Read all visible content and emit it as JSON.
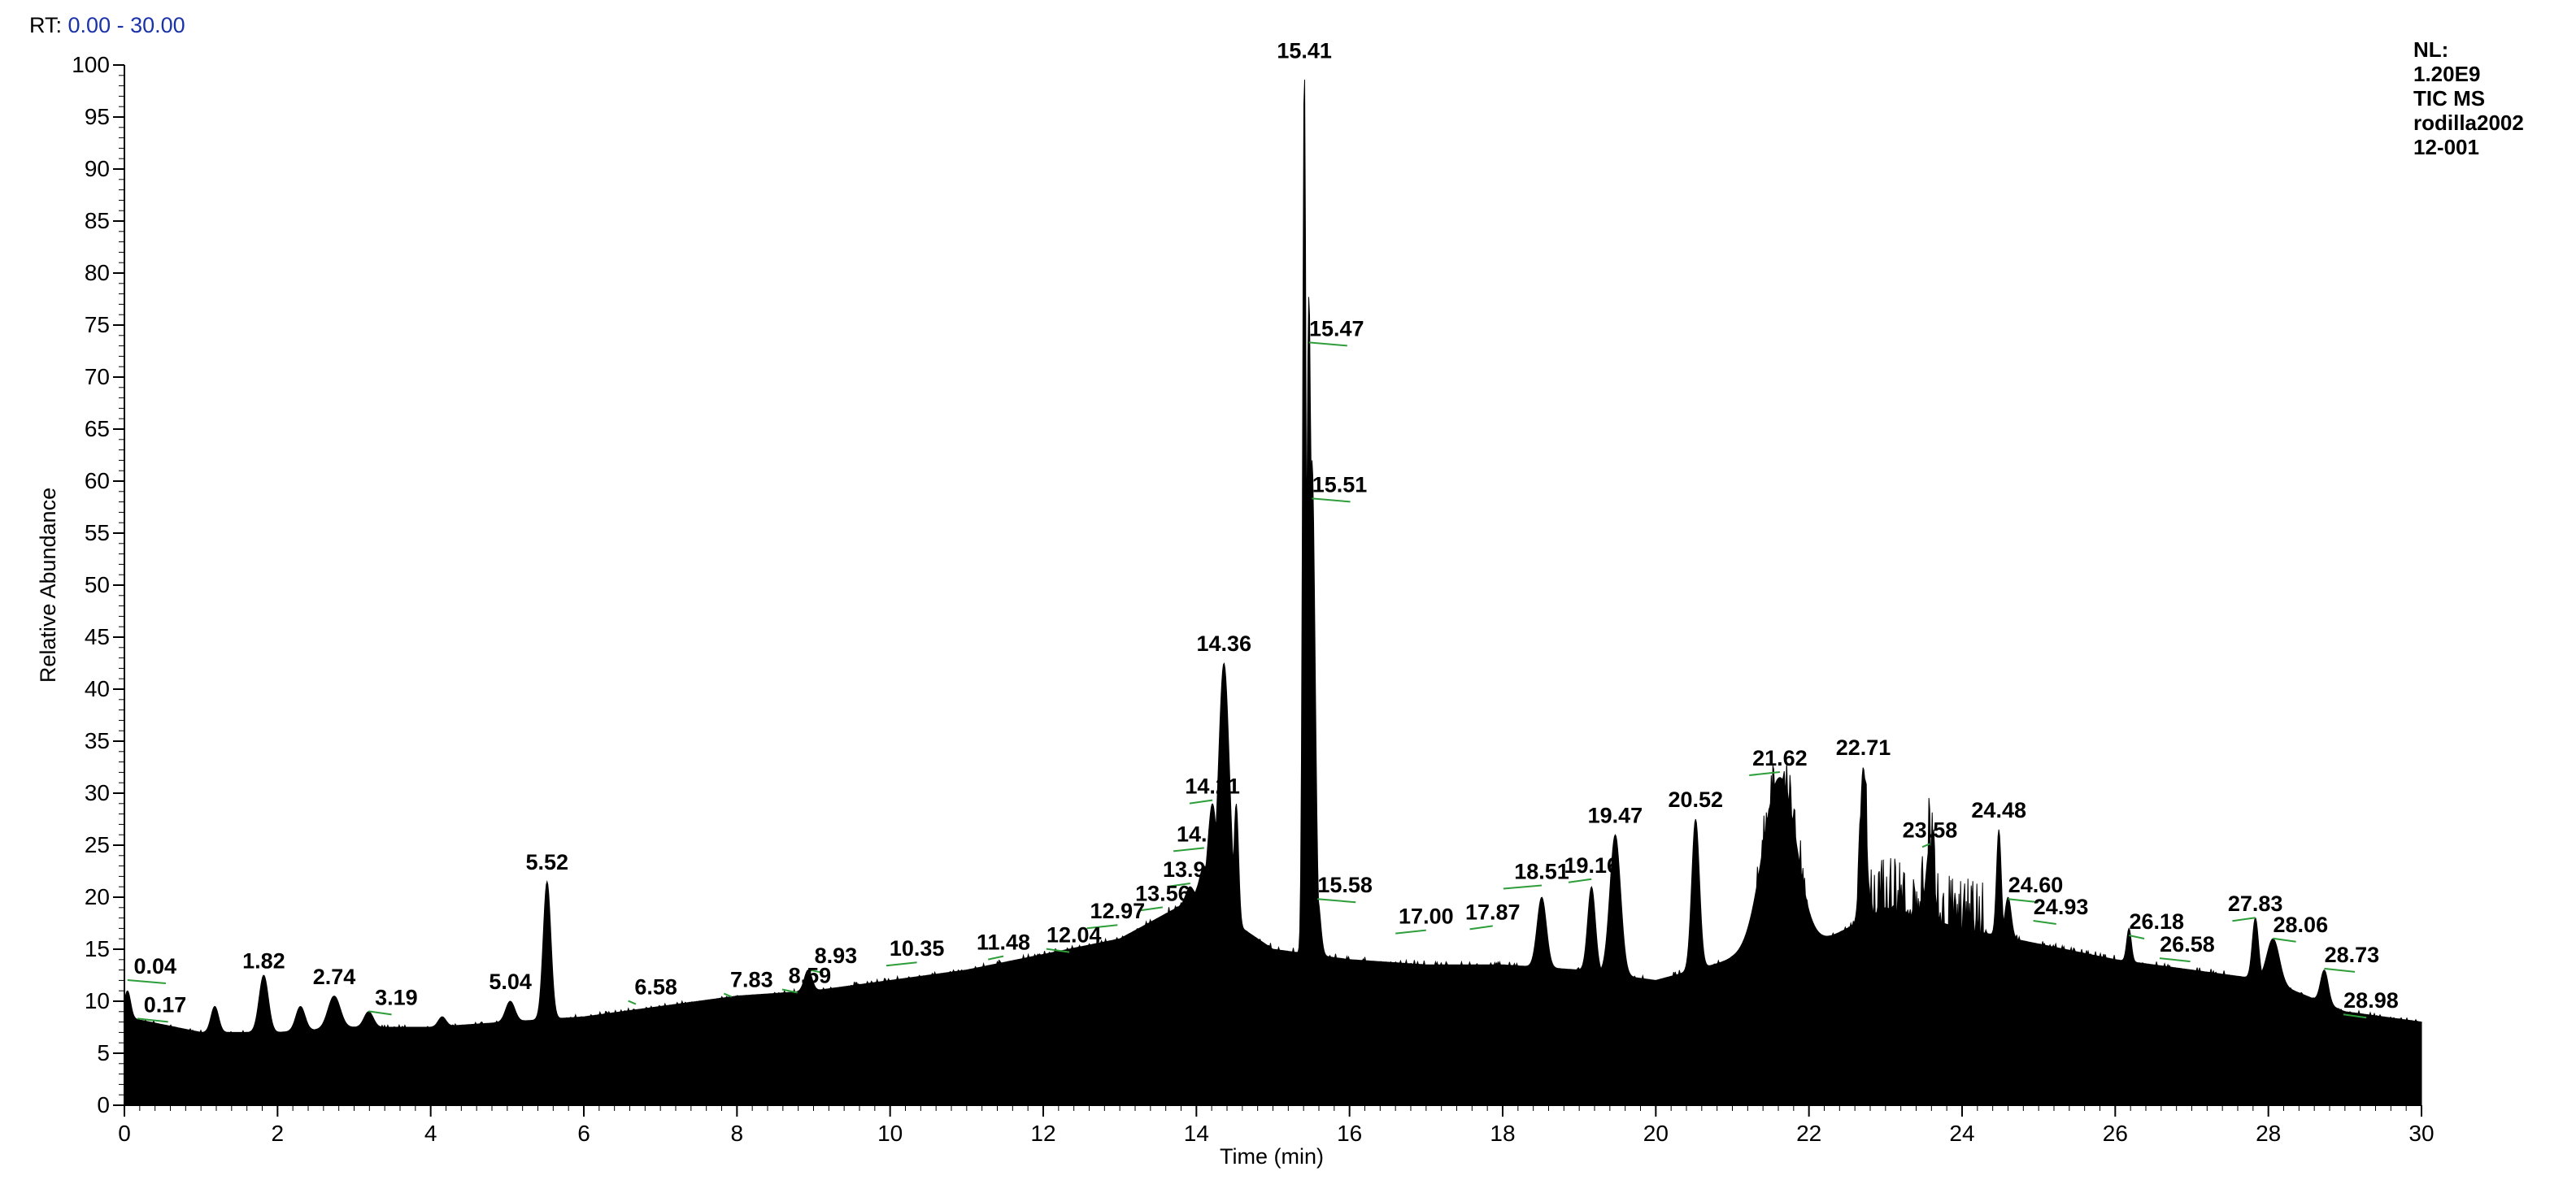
{
  "header": {
    "rt_label": "RT:",
    "rt_range": "0.00 - 30.00"
  },
  "info": {
    "lines": [
      "NL:",
      "1.20E9",
      "TIC  MS",
      "rodilla2002",
      "12-001"
    ]
  },
  "colors": {
    "trace": "#000000",
    "rt_value": "#1a33a8",
    "baseline_marker": "#2e9e3a"
  },
  "chart_data": {
    "type": "area",
    "xlabel": "Time (min)",
    "ylabel": "Relative Abundance",
    "xlim": [
      0,
      30
    ],
    "ylim": [
      0,
      100
    ],
    "x_ticks": [
      0,
      2,
      4,
      6,
      8,
      10,
      12,
      14,
      16,
      18,
      20,
      22,
      24,
      26,
      28,
      30
    ],
    "y_ticks": [
      0,
      5,
      10,
      15,
      20,
      25,
      30,
      35,
      40,
      45,
      50,
      55,
      60,
      65,
      70,
      75,
      80,
      85,
      90,
      95,
      100
    ],
    "baseline": [
      [
        0,
        8.5
      ],
      [
        1,
        7
      ],
      [
        2,
        7
      ],
      [
        3,
        7.5
      ],
      [
        4,
        7.5
      ],
      [
        5,
        8
      ],
      [
        6,
        8.5
      ],
      [
        7,
        9.5
      ],
      [
        8,
        10.5
      ],
      [
        9,
        11
      ],
      [
        10,
        12
      ],
      [
        11,
        13
      ],
      [
        12,
        14.5
      ],
      [
        13,
        16
      ],
      [
        14,
        20
      ],
      [
        15,
        15
      ],
      [
        16,
        14
      ],
      [
        17,
        13.5
      ],
      [
        18,
        13.5
      ],
      [
        19,
        13
      ],
      [
        20,
        12
      ],
      [
        21,
        14
      ],
      [
        22,
        15
      ],
      [
        23,
        19
      ],
      [
        24,
        17
      ],
      [
        25,
        15.5
      ],
      [
        26,
        14
      ],
      [
        27,
        13
      ],
      [
        28,
        12
      ],
      [
        29,
        9
      ],
      [
        30,
        8
      ]
    ],
    "peaks": [
      {
        "rt": 0.04,
        "height": 11,
        "width": 0.04
      },
      {
        "rt": 1.18,
        "height": 9.5,
        "width": 0.05
      },
      {
        "rt": 1.82,
        "height": 12.5,
        "width": 0.06
      },
      {
        "rt": 2.3,
        "height": 9.5,
        "width": 0.06
      },
      {
        "rt": 2.74,
        "height": 10.5,
        "width": 0.08
      },
      {
        "rt": 3.19,
        "height": 9,
        "width": 0.06
      },
      {
        "rt": 4.15,
        "height": 8.5,
        "width": 0.05
      },
      {
        "rt": 5.04,
        "height": 10,
        "width": 0.06
      },
      {
        "rt": 5.52,
        "height": 21.5,
        "width": 0.05
      },
      {
        "rt": 8.93,
        "height": 13,
        "width": 0.05
      },
      {
        "rt": 13.92,
        "height": 21,
        "width": 0.05
      },
      {
        "rt": 14.1,
        "height": 23,
        "width": 0.06
      },
      {
        "rt": 14.21,
        "height": 29,
        "width": 0.06
      },
      {
        "rt": 14.36,
        "height": 42.5,
        "width": 0.07
      },
      {
        "rt": 14.52,
        "height": 29,
        "width": 0.03
      },
      {
        "rt": 15.41,
        "height": 100,
        "width": 0.022
      },
      {
        "rt": 15.47,
        "height": 78,
        "width": 0.03
      },
      {
        "rt": 15.51,
        "height": 62,
        "width": 0.04
      },
      {
        "rt": 15.58,
        "height": 20,
        "width": 0.04
      },
      {
        "rt": 18.51,
        "height": 20,
        "width": 0.06
      },
      {
        "rt": 19.16,
        "height": 21,
        "width": 0.05
      },
      {
        "rt": 19.47,
        "height": 26,
        "width": 0.07
      },
      {
        "rt": 20.52,
        "height": 27.5,
        "width": 0.05
      },
      {
        "rt": 21.62,
        "height": 31.5,
        "width": 0.22
      },
      {
        "rt": 22.71,
        "height": 32.5,
        "width": 0.04
      },
      {
        "rt": 23.58,
        "height": 25,
        "width": 0.05
      },
      {
        "rt": 24.48,
        "height": 26.5,
        "width": 0.03
      },
      {
        "rt": 24.6,
        "height": 20,
        "width": 0.04
      },
      {
        "rt": 26.18,
        "height": 17,
        "width": 0.03
      },
      {
        "rt": 27.83,
        "height": 18,
        "width": 0.04
      },
      {
        "rt": 28.06,
        "height": 16,
        "width": 0.08
      },
      {
        "rt": 28.73,
        "height": 13,
        "width": 0.05
      }
    ],
    "peak_labels": [
      {
        "text": "0.04",
        "rt": 0.04,
        "y": 12.5,
        "offset": 0.5,
        "below": false
      },
      {
        "text": "0.17",
        "rt": 0.17,
        "y": 8.8,
        "offset": 0.4,
        "below": false
      },
      {
        "text": "1.82",
        "rt": 1.82,
        "y": 13,
        "offset": 0,
        "below": false
      },
      {
        "text": "2.74",
        "rt": 2.74,
        "y": 11.5,
        "offset": 0,
        "below": false
      },
      {
        "text": "3.19",
        "rt": 3.19,
        "y": 9.5,
        "offset": 0.3,
        "below": false
      },
      {
        "text": "5.04",
        "rt": 5.04,
        "y": 11,
        "offset": 0,
        "below": false
      },
      {
        "text": "5.52",
        "rt": 5.52,
        "y": 22.5,
        "offset": 0,
        "below": false
      },
      {
        "text": "6.58",
        "rt": 6.58,
        "y": 10.5,
        "offset": 0.1,
        "below": false
      },
      {
        "text": "7.83",
        "rt": 7.83,
        "y": 11.2,
        "offset": 0.1,
        "below": false
      },
      {
        "text": "8.59",
        "rt": 8.59,
        "y": 11.6,
        "offset": 0.2,
        "below": false
      },
      {
        "text": "8.93",
        "rt": 8.93,
        "y": 13.5,
        "offset": 0.2,
        "below": false
      },
      {
        "text": "10.35",
        "rt": 10.35,
        "y": 14.2,
        "offset": -0.4,
        "below": false
      },
      {
        "text": "11.48",
        "rt": 11.48,
        "y": 14.8,
        "offset": -0.2,
        "below": false
      },
      {
        "text": "12.04",
        "rt": 12.04,
        "y": 15.5,
        "offset": 0.3,
        "below": false
      },
      {
        "text": "12.97",
        "rt": 12.97,
        "y": 17.8,
        "offset": -0.4,
        "below": false
      },
      {
        "text": "13.56",
        "rt": 13.56,
        "y": 19.5,
        "offset": -0.3,
        "below": false
      },
      {
        "text": "13.92",
        "rt": 13.92,
        "y": 21.8,
        "offset": -0.3,
        "below": false
      },
      {
        "text": "14.10",
        "rt": 14.1,
        "y": 25.2,
        "offset": -0.4,
        "below": false
      },
      {
        "text": "14.21",
        "rt": 14.21,
        "y": 29.8,
        "offset": -0.3,
        "below": false
      },
      {
        "text": "14.36",
        "rt": 14.36,
        "y": 43.5,
        "offset": 0,
        "below": false
      },
      {
        "text": "15.41",
        "rt": 15.41,
        "y": 100.5,
        "offset": 0,
        "below": false
      },
      {
        "text": "15.47",
        "rt": 15.47,
        "y": 73.8,
        "offset": 0.5,
        "below": false
      },
      {
        "text": "15.51",
        "rt": 15.51,
        "y": 58.8,
        "offset": 0.5,
        "below": false
      },
      {
        "text": "15.58",
        "rt": 15.58,
        "y": 20.3,
        "offset": 0.5,
        "below": false
      },
      {
        "text": "17.00",
        "rt": 17.0,
        "y": 17.3,
        "offset": -0.4,
        "below": false
      },
      {
        "text": "17.87",
        "rt": 17.87,
        "y": 17.7,
        "offset": -0.3,
        "below": false
      },
      {
        "text": "18.51",
        "rt": 18.51,
        "y": 21.6,
        "offset": -0.5,
        "below": false
      },
      {
        "text": "19.16",
        "rt": 19.16,
        "y": 22.2,
        "offset": -0.3,
        "below": false
      },
      {
        "text": "19.47",
        "rt": 19.47,
        "y": 27,
        "offset": 0,
        "below": false
      },
      {
        "text": "20.52",
        "rt": 20.52,
        "y": 28.5,
        "offset": 0,
        "below": false
      },
      {
        "text": "21.62",
        "rt": 21.62,
        "y": 32.5,
        "offset": -0.4,
        "below": false
      },
      {
        "text": "22.71",
        "rt": 22.71,
        "y": 33.5,
        "offset": 0,
        "below": false
      },
      {
        "text": "23.58",
        "rt": 23.58,
        "y": 25.6,
        "offset": -0.1,
        "below": false
      },
      {
        "text": "24.48",
        "rt": 24.48,
        "y": 27.5,
        "offset": 0,
        "below": false
      },
      {
        "text": "24.60",
        "rt": 24.6,
        "y": 20.3,
        "offset": 0.4,
        "below": false
      },
      {
        "text": "24.93",
        "rt": 24.93,
        "y": 18.2,
        "offset": 0.3,
        "below": false
      },
      {
        "text": "26.18",
        "rt": 26.18,
        "y": 16.8,
        "offset": 0.2,
        "below": false
      },
      {
        "text": "26.58",
        "rt": 26.58,
        "y": 14.6,
        "offset": 0.4,
        "below": false
      },
      {
        "text": "27.83",
        "rt": 27.83,
        "y": 18.5,
        "offset": -0.3,
        "below": false
      },
      {
        "text": "28.06",
        "rt": 28.06,
        "y": 16.5,
        "offset": 0.3,
        "below": false
      },
      {
        "text": "28.73",
        "rt": 28.73,
        "y": 13.6,
        "offset": 0.4,
        "below": false
      },
      {
        "text": "28.98",
        "rt": 28.98,
        "y": 9.2,
        "offset": 0.3,
        "below": false
      }
    ]
  }
}
